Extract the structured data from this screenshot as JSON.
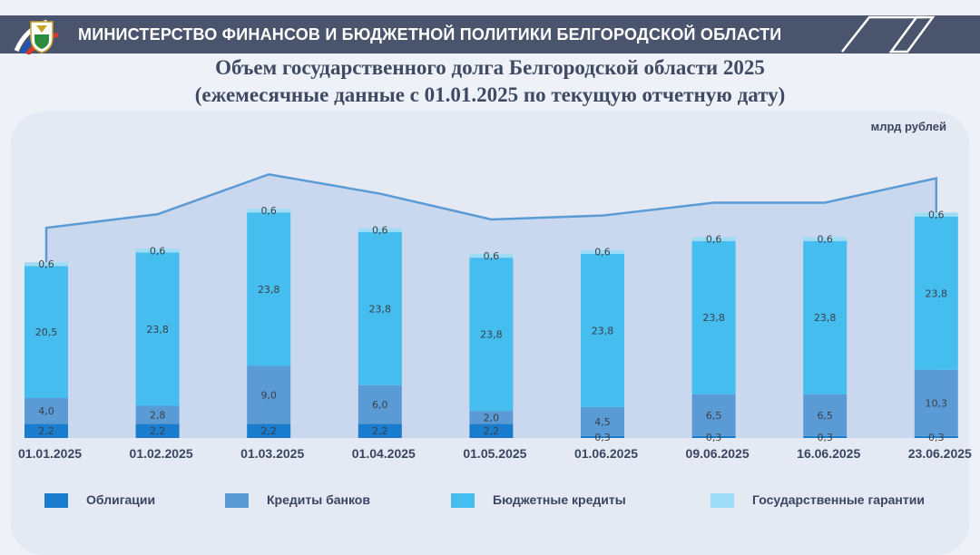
{
  "header": {
    "title": "МИНИСТЕРСТВО ФИНАНСОВ И БЮДЖЕТНОЙ ПОЛИТИКИ БЕЛГОРОДСКОЙ ОБЛАСТИ",
    "emblem_icon": "belgorod-emblem-icon",
    "background": "#4a556d"
  },
  "chart_data": {
    "type": "bar",
    "stacked": true,
    "title": "Объем государственного долга Белгородской области 2025",
    "subtitle": "(ежемесячные данные с 01.01.2025 по текущую отчетную дату)",
    "unit": "млрд рублей",
    "categories": [
      "01.01.2025",
      "01.02.2025",
      "01.03.2025",
      "01.04.2025",
      "01.05.2025",
      "01.06.2025",
      "09.06.2025",
      "16.06.2025",
      "23.06.2025"
    ],
    "series": [
      {
        "name": "Облигации",
        "color": "#1a7ccc",
        "values": [
          2.2,
          2.2,
          2.2,
          2.2,
          2.2,
          0.3,
          0.3,
          0.3,
          0.3
        ],
        "labels": [
          "2,2",
          "2,2",
          "2,2",
          "2,2",
          "2,2",
          "0,3",
          "0,3",
          "0,3",
          "0,3"
        ]
      },
      {
        "name": "Кредиты банков",
        "color": "#5b9bd5",
        "values": [
          4.0,
          2.8,
          9.0,
          6.0,
          2.0,
          4.5,
          6.5,
          6.5,
          10.3
        ],
        "labels": [
          "4,0",
          "2,8",
          "9,0",
          "6,0",
          "2,0",
          "4,5",
          "6,5",
          "6,5",
          "10,3"
        ]
      },
      {
        "name": "Бюджетные кредиты",
        "color": "#45bdee",
        "values": [
          20.5,
          23.8,
          23.8,
          23.8,
          23.8,
          23.8,
          23.8,
          23.8,
          23.8
        ],
        "labels": [
          "20,5",
          "23,8",
          "23,8",
          "23,8",
          "23,8",
          "23,8",
          "23,8",
          "23,8",
          "23,8"
        ]
      },
      {
        "name": "Государственные гарантии",
        "color": "#9edcf6",
        "values": [
          0.6,
          0.6,
          0.6,
          0.6,
          0.6,
          0.6,
          0.6,
          0.6,
          0.6
        ],
        "labels": [
          "0,6",
          "0,6",
          "0,6",
          "0,6",
          "0,6",
          "0,6",
          "0,6",
          "0,6",
          "0,6"
        ]
      }
    ],
    "ylim": [
      0,
      36
    ],
    "legend": "bottom",
    "grid": false,
    "area_color": "#c9d8ee",
    "line_color": "#5b9bd5"
  }
}
